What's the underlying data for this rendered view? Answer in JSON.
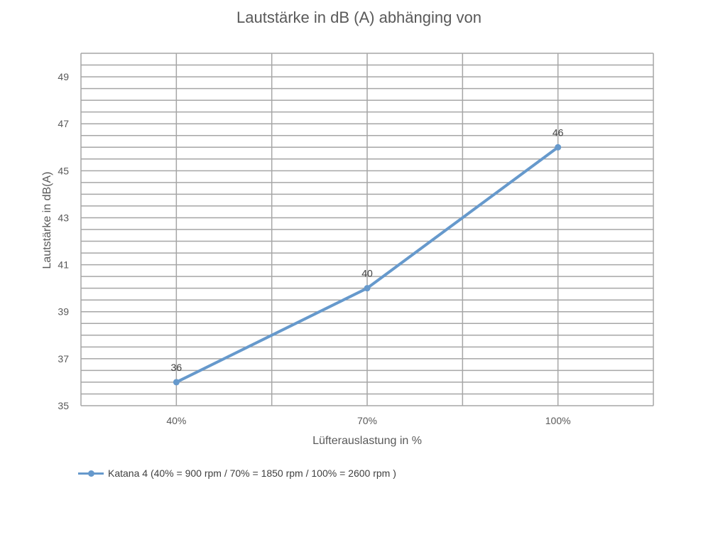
{
  "chart_data": {
    "type": "line",
    "title": "Lautstärke in dB (A) abhänging von",
    "xlabel": "Lüfterauslastung in %",
    "ylabel": "Lautstärke in dB(A)",
    "categories": [
      "40%",
      "70%",
      "100%"
    ],
    "series": [
      {
        "name": "Katana 4 (40% = 900 rpm / 70% =  1850 rpm / 100% = 2600 rpm )",
        "values": [
          36,
          40,
          46
        ],
        "data_labels": [
          "36",
          "40",
          "46"
        ],
        "color": "#6699CC"
      }
    ],
    "ylim": [
      35,
      50
    ],
    "y_ticks": [
      "35",
      "37",
      "39",
      "41",
      "43",
      "45",
      "47",
      "49"
    ],
    "grid": true,
    "legend_position": "bottom-left"
  }
}
